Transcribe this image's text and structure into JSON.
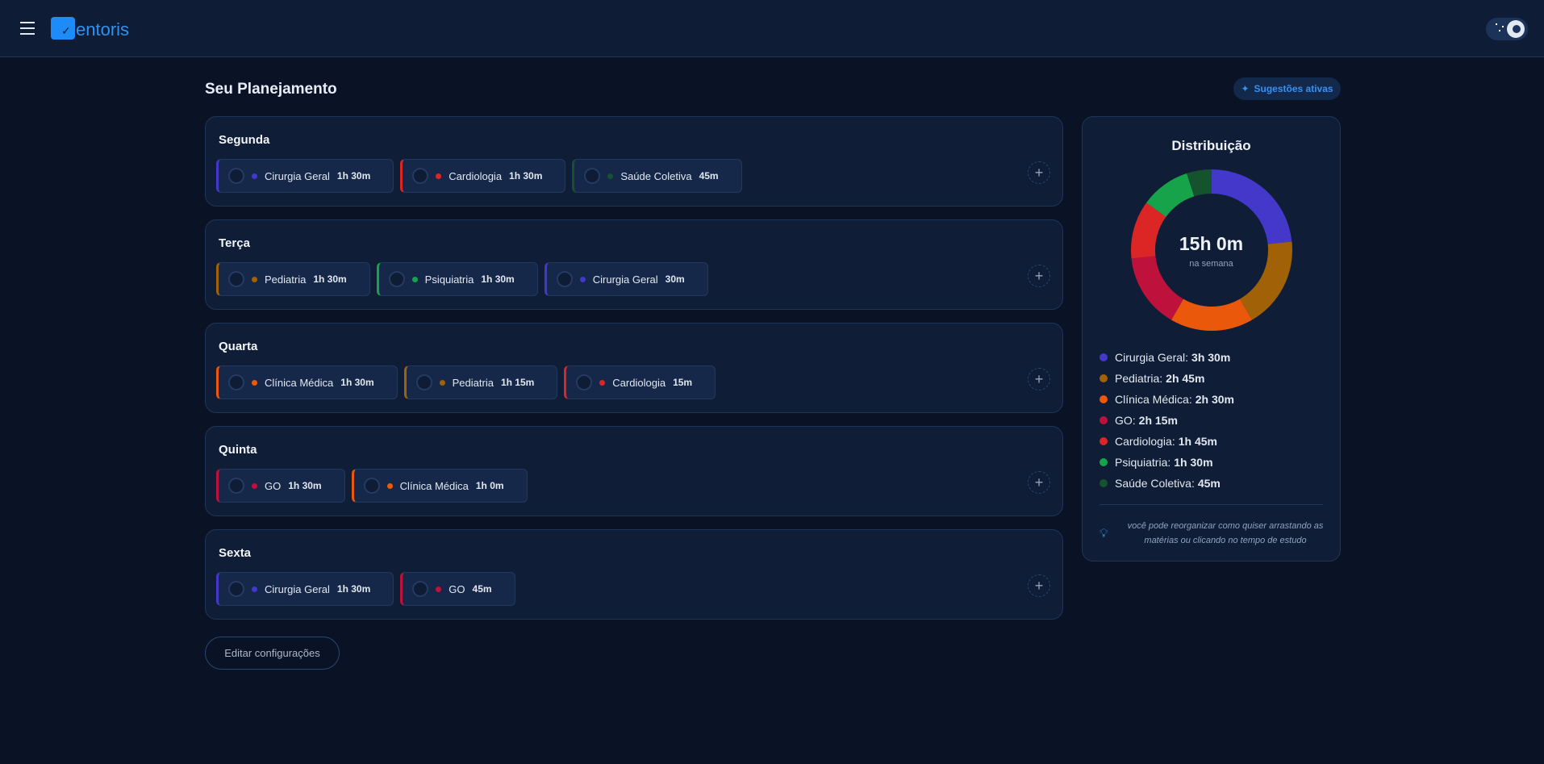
{
  "header": {
    "brand": "Mentoris",
    "logo_letter": "M",
    "logo_text": "entoris",
    "menu_icon": "hamburger-icon",
    "theme_toggle": "dark"
  },
  "page": {
    "title": "Seu Planejamento",
    "suggestions_label": "Sugestões ativas",
    "edit_label": "Editar configurações"
  },
  "colors": {
    "Cirurgia Geral": "#4338ca",
    "Pediatria": "#a16207",
    "Clínica Médica": "#ea580c",
    "GO": "#be123c",
    "Cardiologia": "#dc2626",
    "Psiquiatria": "#16a34a",
    "Saúde Coletiva": "#14532d"
  },
  "days": [
    {
      "label": "Segunda",
      "items": [
        {
          "subject": "Cirurgia Geral",
          "time": "1h 30m"
        },
        {
          "subject": "Cardiologia",
          "time": "1h 30m"
        },
        {
          "subject": "Saúde Coletiva",
          "time": "45m"
        }
      ]
    },
    {
      "label": "Terça",
      "items": [
        {
          "subject": "Pediatria",
          "time": "1h 30m"
        },
        {
          "subject": "Psiquiatria",
          "time": "1h 30m"
        },
        {
          "subject": "Cirurgia Geral",
          "time": "30m"
        }
      ]
    },
    {
      "label": "Quarta",
      "items": [
        {
          "subject": "Clínica Médica",
          "time": "1h 30m"
        },
        {
          "subject": "Pediatria",
          "time": "1h 15m"
        },
        {
          "subject": "Cardiologia",
          "time": "15m"
        }
      ]
    },
    {
      "label": "Quinta",
      "items": [
        {
          "subject": "GO",
          "time": "1h 30m"
        },
        {
          "subject": "Clínica Médica",
          "time": "1h 0m"
        }
      ]
    },
    {
      "label": "Sexta",
      "items": [
        {
          "subject": "Cirurgia Geral",
          "time": "1h 30m"
        },
        {
          "subject": "GO",
          "time": "45m"
        }
      ]
    }
  ],
  "distribution": {
    "title": "Distribuição",
    "total": "15h 0m",
    "total_sub": "na semana",
    "items": [
      {
        "label": "Cirurgia Geral",
        "value": "3h 30m",
        "minutes": 210
      },
      {
        "label": "Pediatria",
        "value": "2h 45m",
        "minutes": 165
      },
      {
        "label": "Clínica Médica",
        "value": "2h 30m",
        "minutes": 150
      },
      {
        "label": "GO",
        "value": "2h 15m",
        "minutes": 135
      },
      {
        "label": "Cardiologia",
        "value": "1h 45m",
        "minutes": 105
      },
      {
        "label": "Psiquiatria",
        "value": "1h 30m",
        "minutes": 90
      },
      {
        "label": "Saúde Coletiva",
        "value": "45m",
        "minutes": 45
      }
    ],
    "tip": "você pode reorganizar como quiser arrastando as matérias ou clicando no tempo de estudo"
  }
}
